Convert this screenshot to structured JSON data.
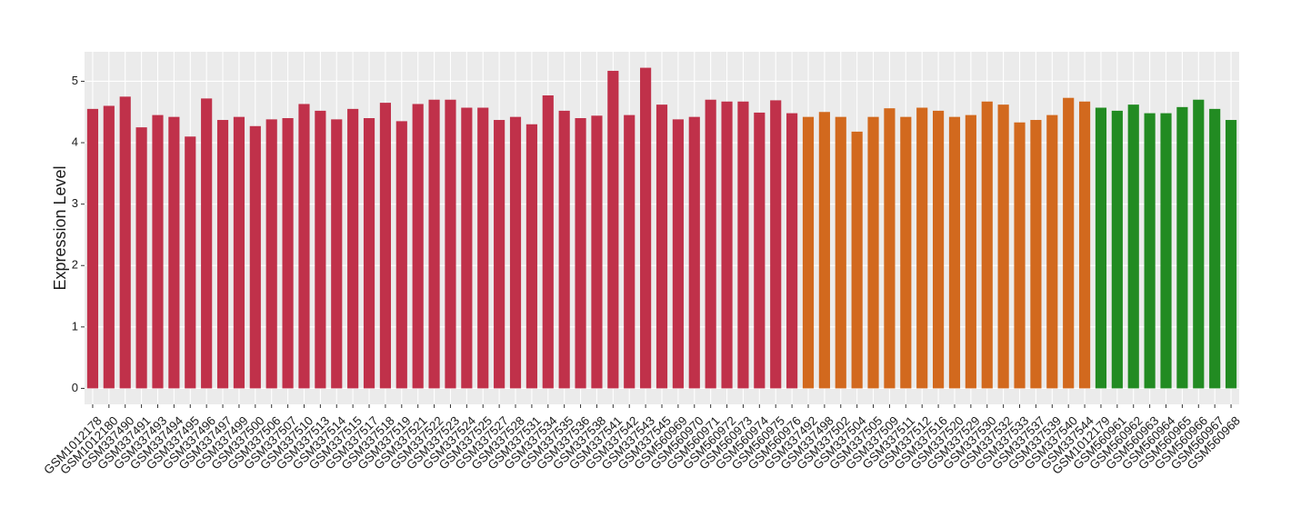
{
  "chart_data": {
    "type": "bar",
    "y_label": "Expression Level",
    "categories": [
      "GSM1012178",
      "GSM1012180",
      "GSM337490",
      "GSM337491",
      "GSM337493",
      "GSM337494",
      "GSM337495",
      "GSM337496",
      "GSM337497",
      "GSM337499",
      "GSM337500",
      "GSM337506",
      "GSM337507",
      "GSM337510",
      "GSM337513",
      "GSM337514",
      "GSM337515",
      "GSM337517",
      "GSM337518",
      "GSM337519",
      "GSM337521",
      "GSM337522",
      "GSM337523",
      "GSM337524",
      "GSM337525",
      "GSM337527",
      "GSM337528",
      "GSM337531",
      "GSM337534",
      "GSM337535",
      "GSM337536",
      "GSM337538",
      "GSM337541",
      "GSM337542",
      "GSM337543",
      "GSM337545",
      "GSM560969",
      "GSM560970",
      "GSM560971",
      "GSM560972",
      "GSM560973",
      "GSM560974",
      "GSM560975",
      "GSM560976",
      "GSM337492",
      "GSM337498",
      "GSM337502",
      "GSM337504",
      "GSM337505",
      "GSM337509",
      "GSM337511",
      "GSM337512",
      "GSM337516",
      "GSM337520",
      "GSM337529",
      "GSM337530",
      "GSM337532",
      "GSM337533",
      "GSM337537",
      "GSM337539",
      "GSM337540",
      "GSM337544",
      "GSM1012179",
      "GSM560961",
      "GSM560962",
      "GSM560963",
      "GSM560964",
      "GSM560965",
      "GSM560966",
      "GSM560967",
      "GSM560968"
    ],
    "values": [
      4.55,
      4.6,
      4.75,
      4.25,
      4.45,
      4.42,
      4.1,
      4.72,
      4.37,
      4.42,
      4.27,
      4.38,
      4.4,
      4.63,
      4.52,
      4.38,
      4.55,
      4.4,
      4.65,
      4.35,
      4.63,
      4.7,
      4.7,
      4.57,
      4.57,
      4.37,
      4.42,
      4.3,
      4.77,
      4.52,
      4.4,
      4.44,
      5.17,
      4.45,
      5.22,
      4.62,
      4.38,
      4.42,
      4.7,
      4.67,
      4.67,
      4.49,
      4.69,
      4.48,
      4.42,
      4.5,
      4.42,
      4.18,
      4.42,
      4.56,
      4.42,
      4.57,
      4.52,
      4.42,
      4.45,
      4.67,
      4.62,
      4.33,
      4.37,
      4.45,
      4.73,
      4.67,
      4.57,
      4.52,
      4.62,
      4.48,
      4.48,
      4.58,
      4.7,
      4.55,
      4.37
    ],
    "colors": [
      "#c0314a",
      "#c0314a",
      "#c0314a",
      "#c0314a",
      "#c0314a",
      "#c0314a",
      "#c0314a",
      "#c0314a",
      "#c0314a",
      "#c0314a",
      "#c0314a",
      "#c0314a",
      "#c0314a",
      "#c0314a",
      "#c0314a",
      "#c0314a",
      "#c0314a",
      "#c0314a",
      "#c0314a",
      "#c0314a",
      "#c0314a",
      "#c0314a",
      "#c0314a",
      "#c0314a",
      "#c0314a",
      "#c0314a",
      "#c0314a",
      "#c0314a",
      "#c0314a",
      "#c0314a",
      "#c0314a",
      "#c0314a",
      "#c0314a",
      "#c0314a",
      "#c0314a",
      "#c0314a",
      "#c0314a",
      "#c0314a",
      "#c0314a",
      "#c0314a",
      "#c0314a",
      "#c0314a",
      "#c0314a",
      "#c0314a",
      "#d2691e",
      "#d2691e",
      "#d2691e",
      "#d2691e",
      "#d2691e",
      "#d2691e",
      "#d2691e",
      "#d2691e",
      "#d2691e",
      "#d2691e",
      "#d2691e",
      "#d2691e",
      "#d2691e",
      "#d2691e",
      "#d2691e",
      "#d2691e",
      "#d2691e",
      "#d2691e",
      "#228b22",
      "#228b22",
      "#228b22",
      "#228b22",
      "#228b22",
      "#228b22",
      "#228b22",
      "#228b22",
      "#228b22"
    ],
    "ylim": [
      -0.26,
      5.48
    ],
    "yticks": [
      0,
      1,
      2,
      3,
      4,
      5
    ],
    "grid": true
  }
}
